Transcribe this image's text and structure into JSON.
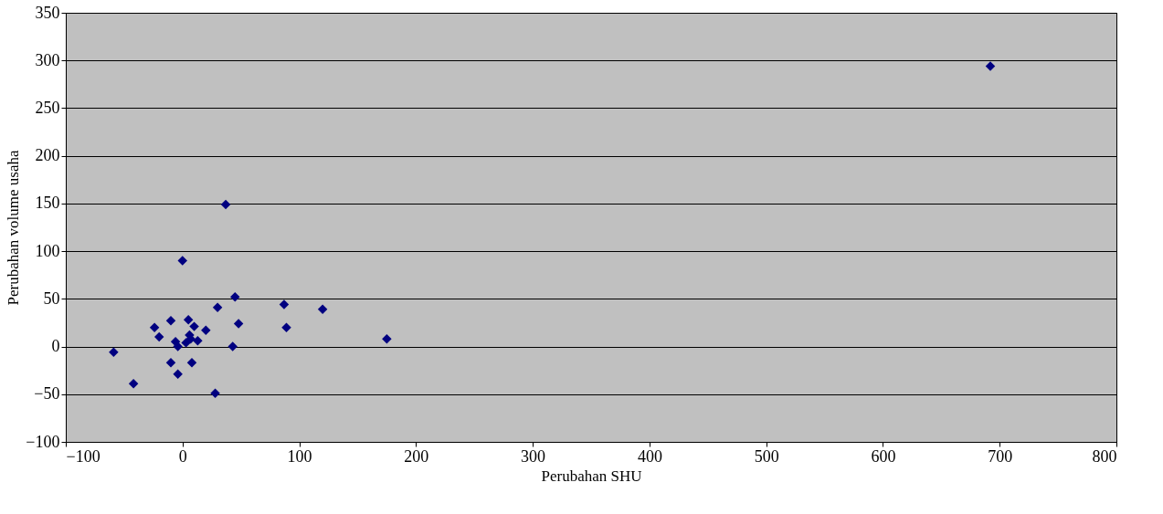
{
  "chart_data": {
    "type": "scatter",
    "xlabel": "Perubahan SHU",
    "ylabel": "Perubahan volume usaha",
    "x": [
      0,
      45,
      30,
      87,
      120,
      -10,
      -24,
      -20,
      5,
      10,
      20,
      48,
      89,
      -6,
      -4,
      3,
      7,
      13,
      43,
      -59,
      -10,
      8,
      -4,
      -42,
      28,
      37,
      175,
      692,
      6
    ],
    "series": [
      {
        "color": "#000080",
        "values": [
          90,
          52,
          41,
          44,
          39,
          27,
          20,
          10,
          28,
          21,
          17,
          24,
          20,
          5,
          0,
          4,
          8,
          6,
          0,
          -6,
          -17,
          -17,
          -29,
          -39,
          -49,
          149,
          8,
          294,
          12
        ]
      }
    ],
    "xlim": [
      -100,
      800
    ],
    "xticks": [
      -100,
      0,
      100,
      200,
      300,
      400,
      500,
      600,
      700,
      800
    ],
    "ylim": [
      -100,
      350
    ],
    "yticks": [
      -100,
      -50,
      0,
      50,
      100,
      150,
      200,
      250,
      300,
      350
    ],
    "grid": "y",
    "marker": "diamond",
    "legend": false
  }
}
